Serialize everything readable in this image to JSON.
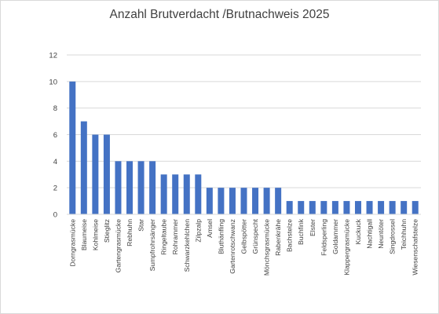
{
  "colors": {
    "bar": "#4472c4",
    "grid": "#d9d9d9",
    "text": "#404040"
  },
  "chart_data": {
    "type": "bar",
    "title": "Anzahl Brutverdacht /Brutnachweis 2025",
    "xlabel": "",
    "ylabel": "",
    "ylim": [
      0,
      12
    ],
    "yticks": [
      0,
      2,
      4,
      6,
      8,
      10,
      12
    ],
    "grid": true,
    "legend": "none",
    "categories": [
      "Dorngrasmücke",
      "Blaumeise",
      "Kohlmeise",
      "Stieglitz",
      "Gartengrasmücke",
      "Rebhuhn",
      "Star",
      "Sumpfrohrsänger",
      "Ringeltaube",
      "Rohrammer",
      "Schwarzkehlchen",
      "Zilpzalp",
      "Amsel",
      "Bluthänfling",
      "Gartenrotschwanz",
      "Gelbspötter",
      "Grünspecht",
      "Mönchsgrasmücke",
      "Rabenkrähe",
      "Bachstelze",
      "Buchfink",
      "Elster",
      "Feldsperling",
      "Goldammer",
      "Klappergrasmücke",
      "Kuckuck",
      "Nachtigall",
      "Neuntöter",
      "Singdrossel",
      "Teichhuhn",
      "Wiesenschafstelze"
    ],
    "values": [
      10,
      7,
      6,
      6,
      4,
      4,
      4,
      4,
      3,
      3,
      3,
      3,
      2,
      2,
      2,
      2,
      2,
      2,
      2,
      1,
      1,
      1,
      1,
      1,
      1,
      1,
      1,
      1,
      1,
      1,
      1
    ]
  }
}
